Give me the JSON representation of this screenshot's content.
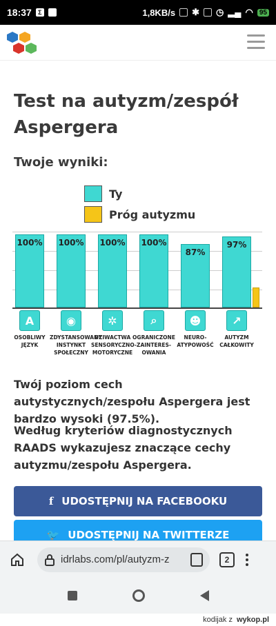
{
  "status": {
    "time": "18:37",
    "speed": "1,8KB/s",
    "battery": "95"
  },
  "page": {
    "title": "Test na autyzm/zespół Aspergera",
    "subtitle": "Twoje wyniki:",
    "legend": [
      {
        "label": "Ty",
        "color": "#3fd8d2"
      },
      {
        "label": "Próg autyzmu",
        "color": "#f5c518"
      }
    ],
    "result_text": "Twój poziom cech autystycznych/zespołu Aspergera jest bardzo wysoki (97.5%).",
    "criteria_text": "Według kryteriów diagnostycznych RAADS wykazujesz znaczące cechy autyzmu/zespołu Aspergera.",
    "facebook_button": "UDOSTĘPNIJ NA FACEBOOKU",
    "twitter_button": "UDOSTĘPNIJ NA TWITTERZE"
  },
  "chart_data": {
    "type": "bar",
    "categories": [
      "OSOBLIWY JĘZYK",
      "ZDYSTANSOWANY INSTYNKT SPOŁECZNY",
      "DZIWACTWA SENSORYCZNO-MOTORYCZNE",
      "OGRANICZONE ZAINTERES-OWANIA",
      "NEURO-ATYPOWOŚĆ",
      "AUTYZM CAŁKOWITY"
    ],
    "series": [
      {
        "name": "Ty",
        "values": [
          100,
          100,
          100,
          100,
          87,
          97
        ],
        "labels": [
          "100%",
          "100%",
          "100%",
          "100%",
          "87%",
          "97%"
        ]
      },
      {
        "name": "Próg autyzmu",
        "values": [
          null,
          null,
          null,
          null,
          null,
          27
        ]
      }
    ],
    "ylim": [
      0,
      100
    ]
  },
  "browser": {
    "url": "idrlabs.com/pl/autyzm-z",
    "tab_count": "2"
  },
  "footer": {
    "user": "kodijak",
    "sep": "z",
    "site": "wykop.pl"
  }
}
